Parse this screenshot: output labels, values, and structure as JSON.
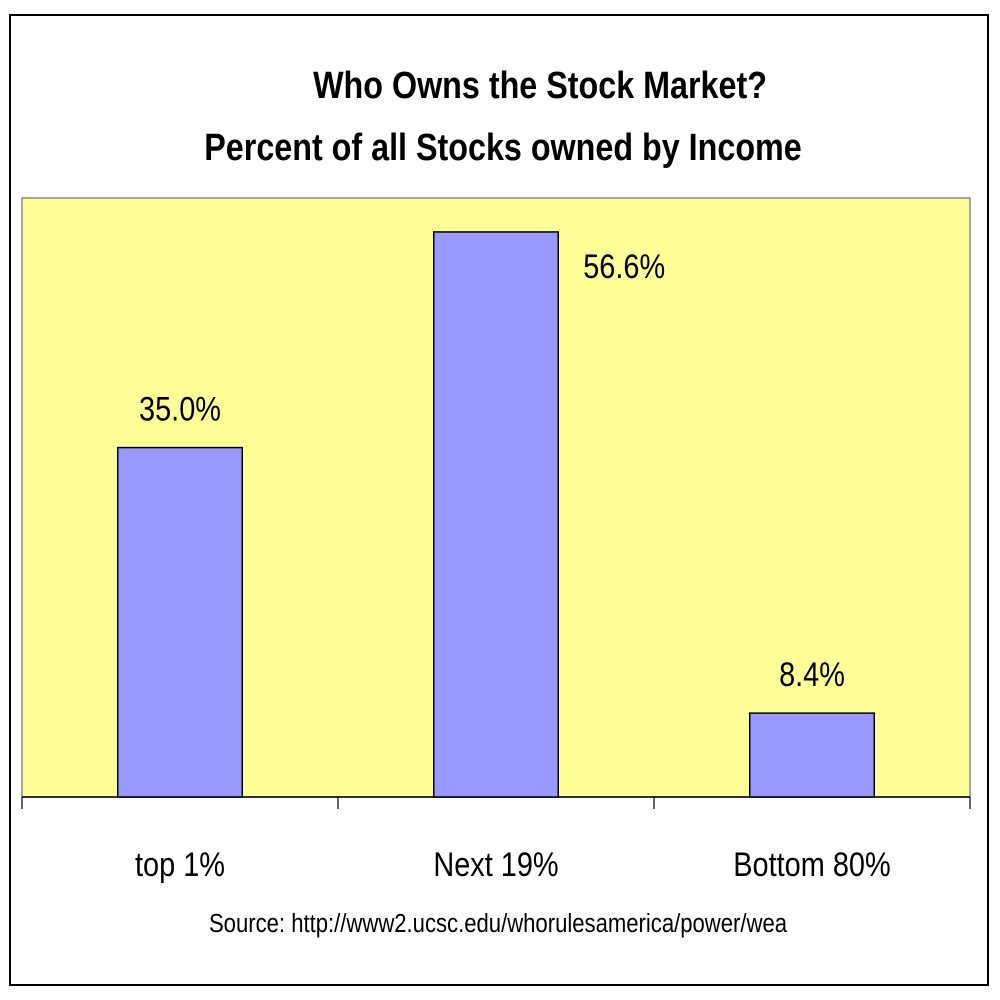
{
  "chart_data": {
    "type": "bar",
    "title": "Who Owns the Stock Market?",
    "subtitle": "Percent of all Stocks owned by Income",
    "categories": [
      "top 1%",
      "Next 19%",
      "Bottom 80%"
    ],
    "values": [
      35.0,
      56.6,
      8.4
    ],
    "value_labels": [
      "35.0%",
      "56.6%",
      "8.4%"
    ],
    "color": "#9999ff",
    "plot_background": "#ffff99",
    "ylim": [
      0,
      60
    ],
    "source": "Source: http://www2.ucsc.edu/whorulesamerica/power/wea"
  }
}
